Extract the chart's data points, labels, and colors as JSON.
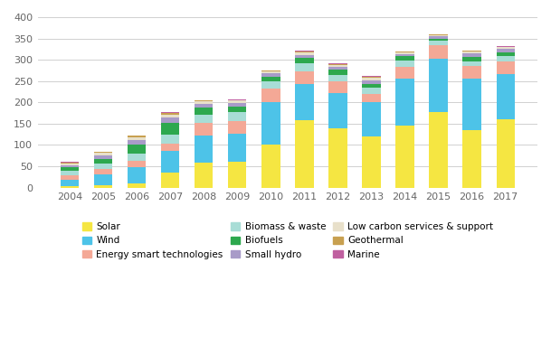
{
  "years": [
    2004,
    2005,
    2006,
    2007,
    2008,
    2009,
    2010,
    2011,
    2012,
    2013,
    2014,
    2015,
    2016,
    2017
  ],
  "categories": [
    "Solar",
    "Wind",
    "Energy smart technologies",
    "Biomass & waste",
    "Biofuels",
    "Small hydro",
    "Low carbon services & support",
    "Geothermal",
    "Marine"
  ],
  "colors": [
    "#f5e642",
    "#4dc3e8",
    "#f4a896",
    "#a8ddd6",
    "#2da84e",
    "#a89bc8",
    "#e8e0ca",
    "#c8a050",
    "#c060a0"
  ],
  "data": {
    "Solar": [
      4,
      5,
      10,
      35,
      58,
      60,
      100,
      158,
      140,
      120,
      145,
      178,
      135,
      160
    ],
    "Wind": [
      14,
      27,
      37,
      51,
      65,
      67,
      100,
      85,
      82,
      80,
      110,
      125,
      120,
      107
    ],
    "Energy smart technologies": [
      12,
      12,
      15,
      18,
      28,
      30,
      32,
      30,
      28,
      20,
      28,
      32,
      30,
      30
    ],
    "Biomass & waste": [
      10,
      12,
      18,
      20,
      20,
      20,
      18,
      18,
      15,
      14,
      16,
      10,
      12,
      12
    ],
    "Biofuels": [
      8,
      12,
      22,
      28,
      18,
      14,
      10,
      13,
      12,
      10,
      10,
      5,
      10,
      8
    ],
    "Small hydro": [
      5,
      8,
      10,
      12,
      8,
      8,
      8,
      8,
      6,
      8,
      5,
      5,
      8,
      8
    ],
    "Low carbon services & support": [
      4,
      5,
      6,
      7,
      5,
      5,
      5,
      6,
      5,
      6,
      4,
      3,
      5,
      5
    ],
    "Geothermal": [
      2,
      3,
      4,
      4,
      2,
      2,
      1,
      2,
      2,
      2,
      1,
      1,
      1,
      1
    ],
    "Marine": [
      1,
      1,
      1,
      2,
      1,
      1,
      1,
      2,
      2,
      2,
      1,
      1,
      1,
      2
    ]
  },
  "ylim": [
    0,
    400
  ],
  "yticks": [
    0,
    50,
    100,
    150,
    200,
    250,
    300,
    350,
    400
  ],
  "background_color": "#ffffff",
  "grid_color": "#d0d0d0",
  "legend_fontsize": 7.5,
  "tick_fontsize": 8
}
